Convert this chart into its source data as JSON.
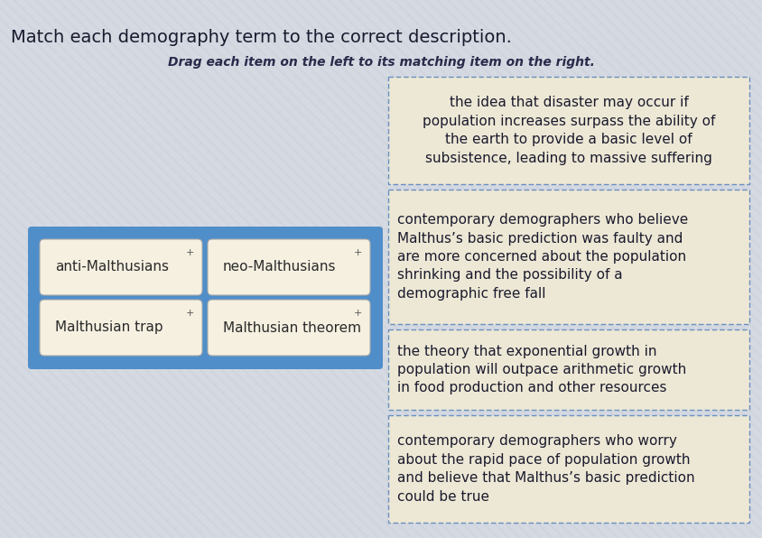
{
  "title": "Match each demography term to the correct description.",
  "subtitle": "Drag each item on the left to its matching item on the right.",
  "bg_color": "#d4d9e2",
  "stripe_color": "#cbd0da",
  "terms": [
    {
      "label": "anti-Malthusians",
      "col": 0,
      "row": 0
    },
    {
      "label": "neo-Malthusians",
      "col": 1,
      "row": 0
    },
    {
      "label": "Malthusian trap",
      "col": 0,
      "row": 1
    },
    {
      "label": "Malthusian theorem",
      "col": 1,
      "row": 1
    }
  ],
  "term_box_bg": "#f5f0e0",
  "term_box_border": "#aaaaaa",
  "terms_container_bg": "#4f8ec9",
  "descriptions": [
    {
      "text": "the idea that disaster may occur if\npopulation increases surpass the ability of\nthe earth to provide a basic level of\nsubsistence, leading to massive suffering",
      "align": "center"
    },
    {
      "text": "contemporary demographers who believe\nMalthus’s basic prediction was faulty and\nare more concerned about the population\nshrinking and the possibility of a\ndemographic free fall",
      "align": "left"
    },
    {
      "text": "the theory that exponential growth in\npopulation will outpace arithmetic growth\nin food production and other resources",
      "align": "left"
    },
    {
      "text": "contemporary demographers who worry\nabout the rapid pace of population growth\nand believe that Malthus’s basic prediction\ncould be true",
      "align": "left"
    }
  ],
  "desc_box_bg": "#ede8d5",
  "desc_box_border": "#6b8fbf",
  "title_fontsize": 14,
  "subtitle_fontsize": 10,
  "term_fontsize": 11,
  "desc_fontsize": 11
}
